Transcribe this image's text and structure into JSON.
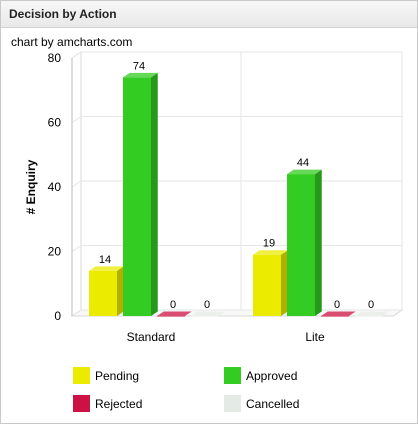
{
  "panel": {
    "title": "Decision by Action"
  },
  "credit": "chart by amcharts.com",
  "chart_data": {
    "type": "bar",
    "style": "3d-column",
    "categories": [
      "Standard",
      "Lite"
    ],
    "series": [
      {
        "name": "Pending",
        "values": [
          14,
          19
        ],
        "color": "#ebeb00"
      },
      {
        "name": "Approved",
        "values": [
          74,
          44
        ],
        "color": "#33cc22"
      },
      {
        "name": "Rejected",
        "values": [
          0,
          0
        ],
        "color": "#cc1144"
      },
      {
        "name": "Cancelled",
        "values": [
          0,
          0
        ],
        "color": "#e4ebe7"
      }
    ],
    "ylabel": "# Enquiry",
    "xlabel": "",
    "ylim": [
      0,
      80
    ],
    "yticks": [
      0,
      20,
      40,
      60,
      80
    ],
    "grid": true,
    "legend": "bottom"
  }
}
